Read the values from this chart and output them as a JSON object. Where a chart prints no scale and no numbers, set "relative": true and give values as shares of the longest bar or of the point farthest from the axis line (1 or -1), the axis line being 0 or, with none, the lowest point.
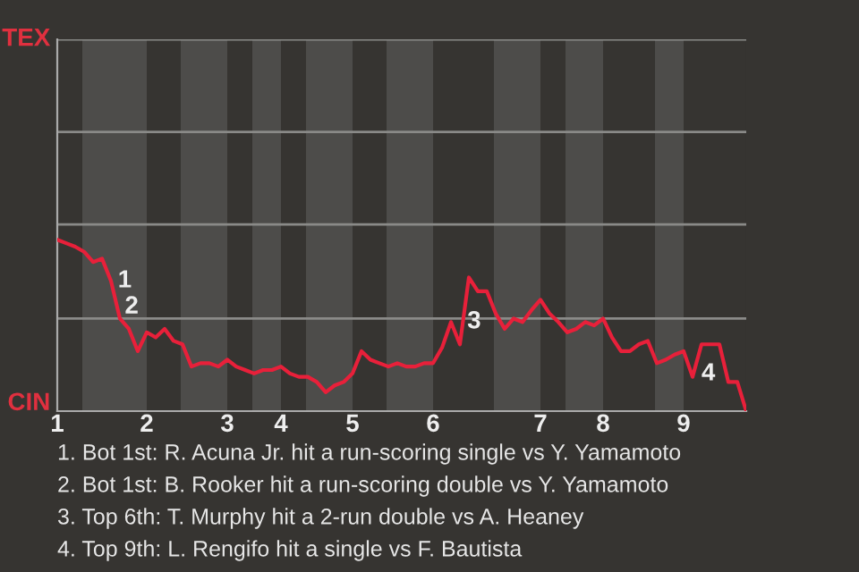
{
  "chart_data": {
    "type": "line",
    "relative": true,
    "categories": [
      "1",
      null,
      null,
      null,
      null,
      null,
      null,
      null,
      null,
      null,
      "2",
      null,
      null,
      null,
      null,
      null,
      null,
      null,
      null,
      "3",
      null,
      null,
      null,
      null,
      null,
      "4",
      null,
      null,
      null,
      null,
      null,
      null,
      null,
      "5",
      null,
      null,
      null,
      null,
      null,
      null,
      null,
      null,
      "6",
      null,
      null,
      null,
      null,
      null,
      null,
      null,
      null,
      null,
      null,
      null,
      "7",
      null,
      null,
      null,
      null,
      null,
      null,
      "8",
      null,
      null,
      null,
      null,
      null,
      null,
      null,
      null,
      "9",
      null,
      null,
      null,
      null,
      null,
      null,
      null
    ],
    "series": [
      {
        "color": "#e8203a",
        "values": [
          1,
          0.98,
          0.96,
          0.93,
          0.87,
          0.89,
          0.76,
          0.54,
          0.48,
          0.35,
          0.46,
          0.43,
          0.48,
          0.41,
          0.39,
          0.26,
          0.28,
          0.28,
          0.26,
          0.3,
          0.26,
          0.24,
          0.22,
          0.24,
          0.24,
          0.26,
          0.22,
          0.2,
          0.2,
          0.17,
          0.11,
          0.15,
          0.17,
          0.22,
          0.35,
          0.3,
          0.28,
          0.26,
          0.28,
          0.26,
          0.26,
          0.28,
          0.28,
          0.37,
          0.52,
          0.39,
          0.78,
          0.7,
          0.7,
          0.57,
          0.48,
          0.54,
          0.52,
          0.59,
          0.65,
          0.57,
          0.52,
          0.46,
          0.48,
          0.52,
          0.5,
          0.54,
          0.43,
          0.35,
          0.35,
          0.39,
          0.41,
          0.28,
          0.3,
          0.33,
          0.35,
          0.2,
          0.39,
          0.39,
          0.39,
          0.17,
          0.17,
          0
        ]
      }
    ],
    "ref_lines": [
      {
        "axis": "y",
        "value": 0.54,
        "color": "#8a8a88"
      },
      {
        "axis": "y",
        "value": 1.09,
        "color": "#8a8a88"
      },
      {
        "axis": "y",
        "value": 1.63,
        "color": "#8a8a88"
      },
      {
        "axis": "y",
        "value": 2.17,
        "color": "#8a8a88"
      }
    ],
    "annotations": [
      "TEX",
      "CIN",
      "1",
      "2",
      "3",
      "4",
      "1. Bot 1st: R. Acuna Jr. hit a run-scoring single vs Y. Yamamoto",
      "2. Bot 1st: B. Rooker hit a run-scoring double vs Y. Yamamoto",
      "3. Top 6th: T. Murphy hit a 2-run double vs A. Heaney",
      "4. Top 9th: L. Rengifo hit a single vs F. Bautista"
    ]
  }
}
